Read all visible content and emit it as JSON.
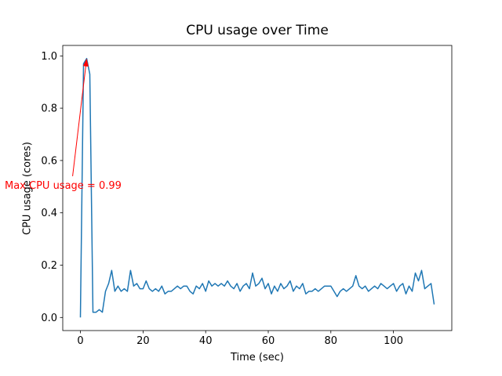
{
  "chart_data": {
    "type": "line",
    "title": "CPU usage over Time",
    "xlabel": "Time (sec)",
    "ylabel": "CPU usage (cores)",
    "line_color": "#1f77b4",
    "line_width": 1.5,
    "background": "#ffffff",
    "grid": false,
    "legend": null,
    "x_ticks": [
      0,
      20,
      40,
      60,
      80,
      100
    ],
    "y_ticks": [
      0.0,
      0.2,
      0.4,
      0.6,
      0.8,
      1.0
    ],
    "xlim": [
      -5.65,
      118.65
    ],
    "ylim": [
      -0.05,
      1.04
    ],
    "x_start": 0,
    "x_step": 1,
    "values": [
      0.0,
      0.97,
      0.99,
      0.93,
      0.02,
      0.02,
      0.03,
      0.02,
      0.1,
      0.13,
      0.18,
      0.1,
      0.12,
      0.1,
      0.11,
      0.1,
      0.18,
      0.12,
      0.13,
      0.11,
      0.11,
      0.14,
      0.11,
      0.1,
      0.11,
      0.1,
      0.12,
      0.09,
      0.1,
      0.1,
      0.11,
      0.12,
      0.11,
      0.12,
      0.12,
      0.1,
      0.09,
      0.12,
      0.11,
      0.13,
      0.1,
      0.14,
      0.12,
      0.13,
      0.12,
      0.13,
      0.12,
      0.14,
      0.12,
      0.11,
      0.13,
      0.1,
      0.12,
      0.13,
      0.11,
      0.17,
      0.12,
      0.13,
      0.15,
      0.11,
      0.13,
      0.09,
      0.12,
      0.1,
      0.13,
      0.11,
      0.12,
      0.14,
      0.1,
      0.12,
      0.11,
      0.13,
      0.09,
      0.1,
      0.1,
      0.11,
      0.1,
      0.11,
      0.12,
      0.12,
      0.12,
      0.1,
      0.08,
      0.1,
      0.11,
      0.1,
      0.11,
      0.12,
      0.16,
      0.12,
      0.11,
      0.12,
      0.1,
      0.11,
      0.12,
      0.11,
      0.13,
      0.12,
      0.11,
      0.12,
      0.13,
      0.1,
      0.12,
      0.13,
      0.09,
      0.12,
      0.1,
      0.17,
      0.14,
      0.18,
      0.11,
      0.12,
      0.13,
      0.05
    ],
    "annotation": {
      "text": "Max CPU usage = 0.99",
      "color": "#ff0000",
      "target_x": 2,
      "target_y": 0.99,
      "arrow_start_x": -2.5,
      "arrow_start_y": 0.54
    }
  }
}
